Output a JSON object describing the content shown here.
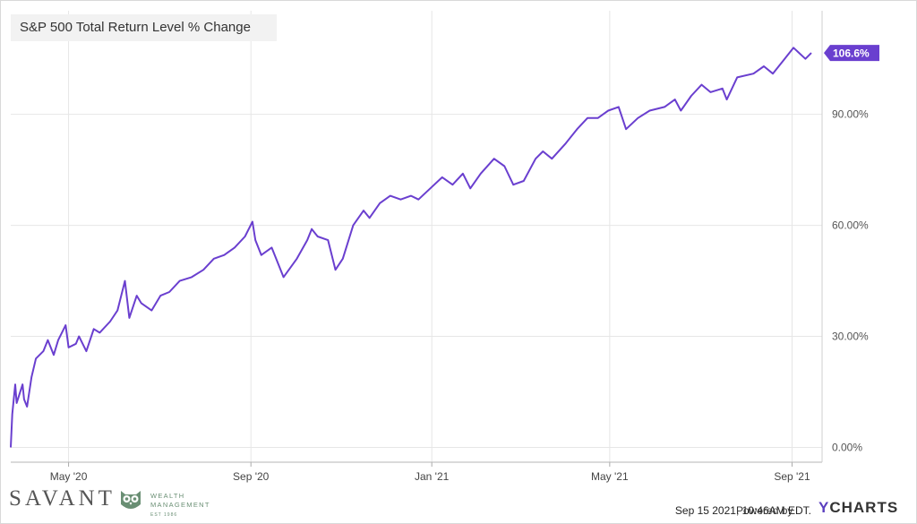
{
  "chart_data": {
    "type": "line",
    "title": "S&P 500 Total Return Level % Change",
    "xlabel": "",
    "ylabel": "",
    "x_tick_labels": [
      "May '20",
      "Sep '20",
      "Jan '21",
      "May '21",
      "Sep '21"
    ],
    "y_tick_labels": [
      "0.00%",
      "30.00%",
      "60.00%",
      "90.00%"
    ],
    "ylim": [
      -4,
      118
    ],
    "grid": true,
    "end_label": "106.6%",
    "series": [
      {
        "name": "",
        "color": "#6a3fcf",
        "points": [
          [
            "2020-03-23",
            0
          ],
          [
            "2020-03-24",
            9
          ],
          [
            "2020-03-26",
            17
          ],
          [
            "2020-03-27",
            12
          ],
          [
            "2020-03-31",
            17
          ],
          [
            "2020-04-01",
            13
          ],
          [
            "2020-04-03",
            11
          ],
          [
            "2020-04-06",
            19
          ],
          [
            "2020-04-09",
            24
          ],
          [
            "2020-04-14",
            26
          ],
          [
            "2020-04-17",
            29
          ],
          [
            "2020-04-21",
            25
          ],
          [
            "2020-04-24",
            29
          ],
          [
            "2020-04-29",
            33
          ],
          [
            "2020-05-01",
            27
          ],
          [
            "2020-05-06",
            28
          ],
          [
            "2020-05-08",
            30
          ],
          [
            "2020-05-13",
            26
          ],
          [
            "2020-05-18",
            32
          ],
          [
            "2020-05-22",
            31
          ],
          [
            "2020-05-29",
            34
          ],
          [
            "2020-06-03",
            37
          ],
          [
            "2020-06-08",
            45
          ],
          [
            "2020-06-11",
            35
          ],
          [
            "2020-06-16",
            41
          ],
          [
            "2020-06-19",
            39
          ],
          [
            "2020-06-26",
            37
          ],
          [
            "2020-07-02",
            41
          ],
          [
            "2020-07-08",
            42
          ],
          [
            "2020-07-15",
            45
          ],
          [
            "2020-07-23",
            46
          ],
          [
            "2020-07-31",
            48
          ],
          [
            "2020-08-07",
            51
          ],
          [
            "2020-08-14",
            52
          ],
          [
            "2020-08-21",
            54
          ],
          [
            "2020-08-28",
            57
          ],
          [
            "2020-09-02",
            61
          ],
          [
            "2020-09-04",
            56
          ],
          [
            "2020-09-08",
            52
          ],
          [
            "2020-09-15",
            54
          ],
          [
            "2020-09-23",
            46
          ],
          [
            "2020-10-02",
            51
          ],
          [
            "2020-10-09",
            56
          ],
          [
            "2020-10-12",
            59
          ],
          [
            "2020-10-16",
            57
          ],
          [
            "2020-10-23",
            56
          ],
          [
            "2020-10-28",
            48
          ],
          [
            "2020-11-02",
            51
          ],
          [
            "2020-11-09",
            60
          ],
          [
            "2020-11-16",
            64
          ],
          [
            "2020-11-20",
            62
          ],
          [
            "2020-11-27",
            66
          ],
          [
            "2020-12-04",
            68
          ],
          [
            "2020-12-11",
            67
          ],
          [
            "2020-12-18",
            68
          ],
          [
            "2020-12-23",
            67
          ],
          [
            "2020-12-31",
            70
          ],
          [
            "2021-01-08",
            73
          ],
          [
            "2021-01-15",
            71
          ],
          [
            "2021-01-22",
            74
          ],
          [
            "2021-01-27",
            70
          ],
          [
            "2021-02-03",
            74
          ],
          [
            "2021-02-12",
            78
          ],
          [
            "2021-02-19",
            76
          ],
          [
            "2021-02-25",
            71
          ],
          [
            "2021-03-04",
            72
          ],
          [
            "2021-03-12",
            78
          ],
          [
            "2021-03-17",
            80
          ],
          [
            "2021-03-23",
            78
          ],
          [
            "2021-04-01",
            82
          ],
          [
            "2021-04-09",
            86
          ],
          [
            "2021-04-16",
            89
          ],
          [
            "2021-04-23",
            89
          ],
          [
            "2021-04-30",
            91
          ],
          [
            "2021-05-07",
            92
          ],
          [
            "2021-05-12",
            86
          ],
          [
            "2021-05-20",
            89
          ],
          [
            "2021-05-28",
            91
          ],
          [
            "2021-06-07",
            92
          ],
          [
            "2021-06-14",
            94
          ],
          [
            "2021-06-18",
            91
          ],
          [
            "2021-06-25",
            95
          ],
          [
            "2021-07-02",
            98
          ],
          [
            "2021-07-08",
            96
          ],
          [
            "2021-07-16",
            97
          ],
          [
            "2021-07-19",
            94
          ],
          [
            "2021-07-26",
            100
          ],
          [
            "2021-08-06",
            101
          ],
          [
            "2021-08-13",
            103
          ],
          [
            "2021-08-19",
            101
          ],
          [
            "2021-08-27",
            105
          ],
          [
            "2021-09-02",
            108
          ],
          [
            "2021-09-10",
            105
          ],
          [
            "2021-09-14",
            106.6
          ]
        ]
      }
    ]
  },
  "footer": {
    "timestamp": "Sep 15 2021, 10:46AM EDT.",
    "powered_by": "Powered by",
    "brand_y": "Y",
    "brand_rest": "CHARTS"
  },
  "logo": {
    "name": "SAVANT",
    "line1": "WEALTH",
    "line2": "MANAGEMENT",
    "line3": "EST 1986"
  }
}
